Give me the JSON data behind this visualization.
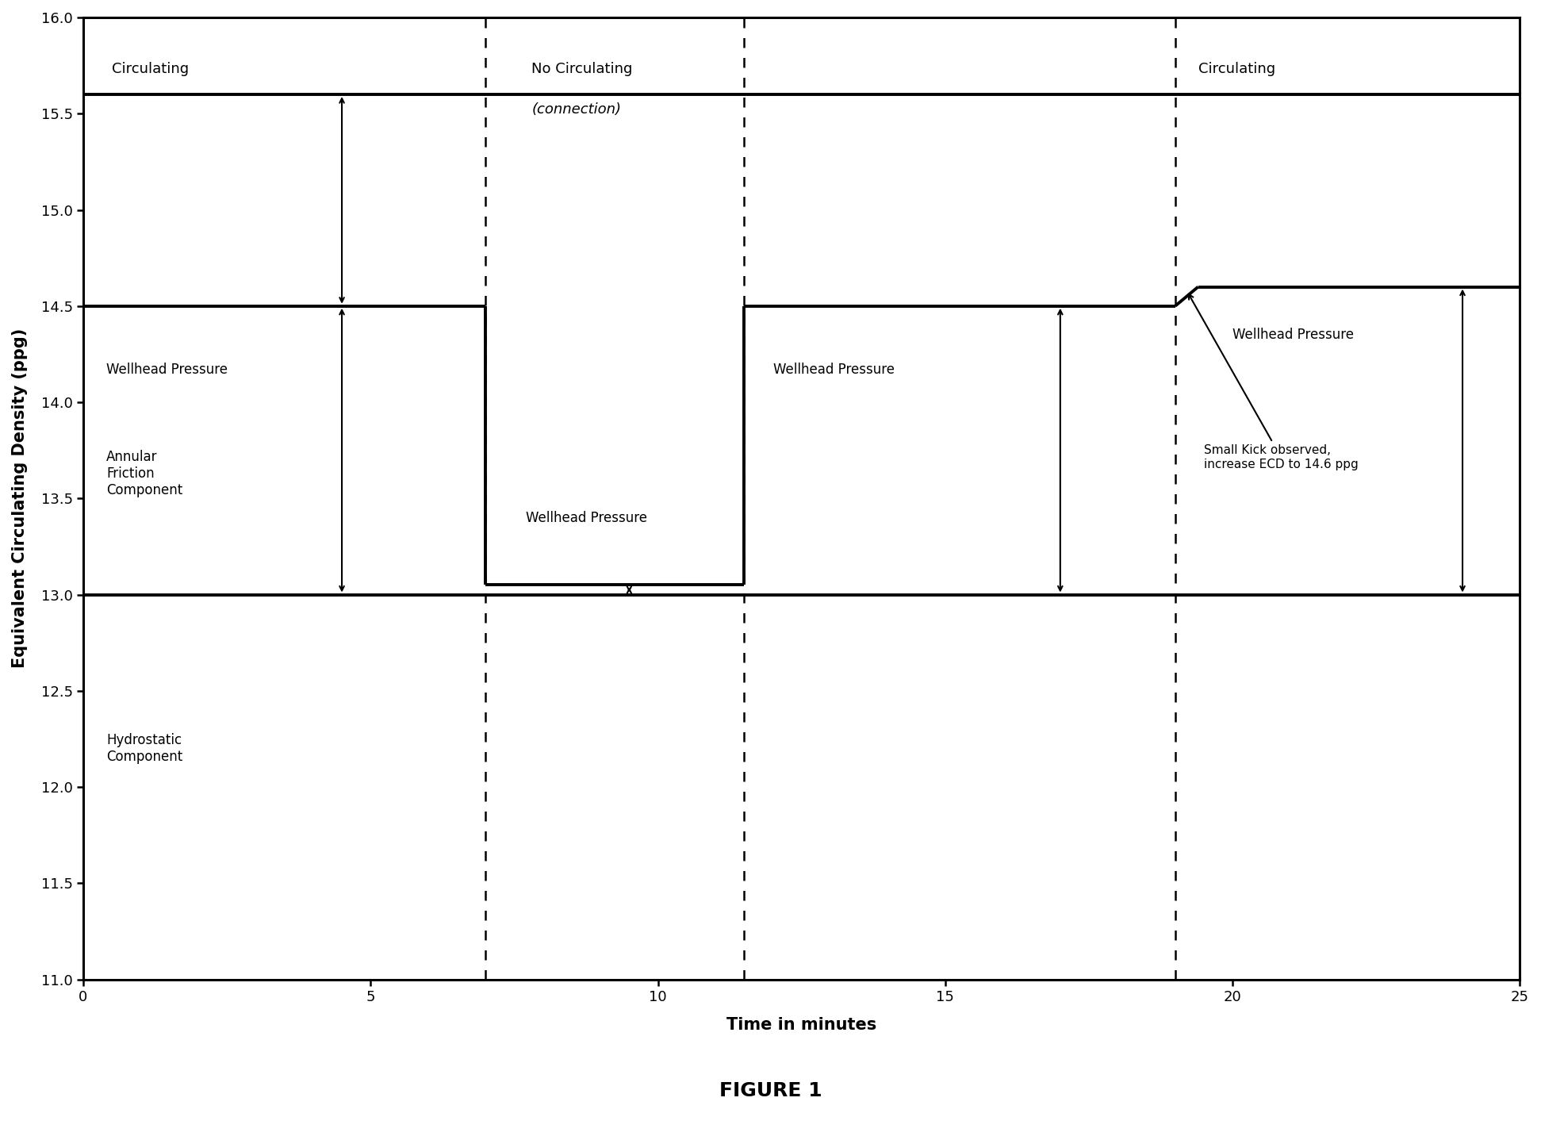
{
  "xlim": [
    0,
    25
  ],
  "ylim": [
    11.0,
    16.0
  ],
  "xlabel": "Time in minutes",
  "ylabel": "Equivalent Circulating Density (ppg)",
  "xticks": [
    0,
    5,
    10,
    15,
    20,
    25
  ],
  "yticks": [
    11.0,
    11.5,
    12.0,
    12.5,
    13.0,
    13.5,
    14.0,
    14.5,
    15.0,
    15.5,
    16.0
  ],
  "figure_caption": "FIGURE 1",
  "ecd_line_y": 15.6,
  "hydrostatic_y": 13.0,
  "wellhead_pressure_y1": 14.5,
  "wellhead_pressure_y2": 14.6,
  "wp_no_circ": 13.05,
  "vline_x1": 7.0,
  "vline_x2": 11.5,
  "vline_x3": 19.0,
  "background_color": "#ffffff",
  "line_color": "#000000",
  "lw_main": 2.8,
  "lw_dashed": 1.8,
  "lw_arrow": 1.5
}
